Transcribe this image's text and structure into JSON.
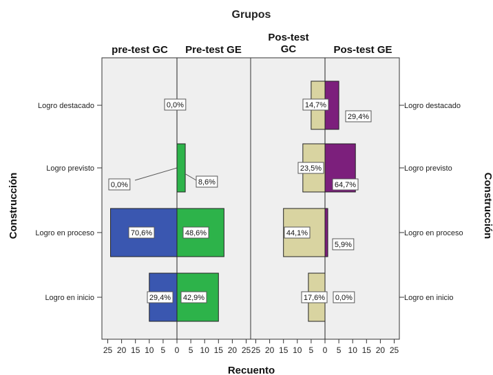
{
  "chart_data": {
    "type": "bar",
    "title": "Grupos",
    "xlabel": "Recuento",
    "ylabel": "Construcción",
    "ylabel_right": "Construcción",
    "categories": [
      "Logro destacado",
      "Logro previsto",
      "Logro en proceso",
      "Logro en inicio"
    ],
    "xticks": [
      "25",
      "20",
      "15",
      "10",
      "5",
      "0",
      "5",
      "10",
      "15",
      "20",
      "25"
    ],
    "xlim": [
      0,
      25
    ],
    "panels": [
      {
        "name": "Pre-test",
        "series": [
          {
            "name": "pre-test GC",
            "side": "left",
            "color": "#3a57b0",
            "values": [
              0,
              0,
              24,
              10
            ],
            "labels": [
              "0,0%",
              "0,0%",
              "70,6%",
              "29,4%"
            ]
          },
          {
            "name": "Pre-test GE",
            "side": "right",
            "color": "#2db34a",
            "values": [
              0,
              3,
              17,
              15
            ],
            "labels": [
              "0,0%",
              "8,6%",
              "48,6%",
              "42,9%"
            ]
          }
        ]
      },
      {
        "name": "Pos-test",
        "series": [
          {
            "name": "Pos-test GC",
            "side": "left",
            "color": "#d9d4a1",
            "values": [
              5,
              8,
              15,
              6
            ],
            "labels": [
              "14,7%",
              "23,5%",
              "44,1%",
              "17,6%"
            ]
          },
          {
            "name": "Pos-test GE",
            "side": "right",
            "color": "#7c1f7c",
            "values": [
              5,
              11,
              1,
              0
            ],
            "labels": [
              "29,4%",
              "64,7%",
              "5,9%",
              "0,0%"
            ]
          }
        ]
      }
    ]
  }
}
